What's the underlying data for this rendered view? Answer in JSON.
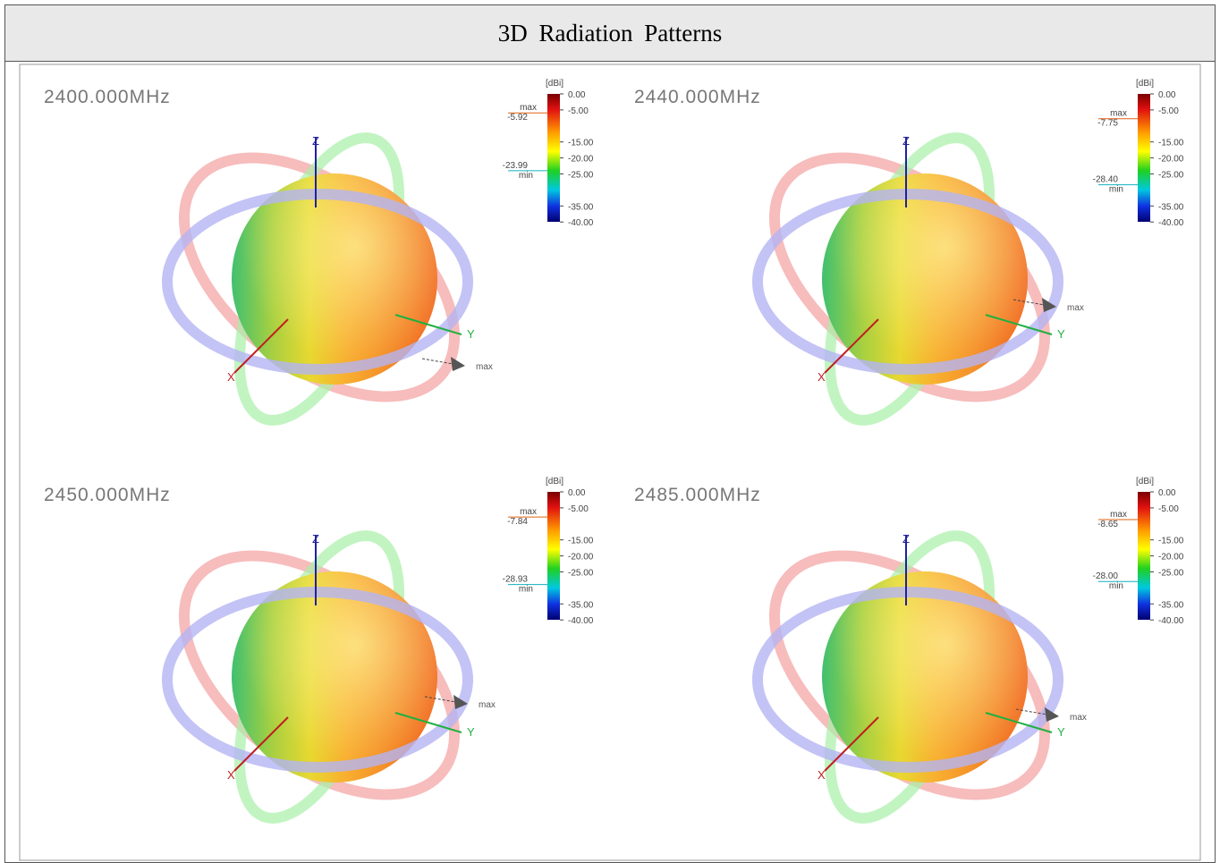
{
  "header": {
    "title": "3D Radiation Patterns"
  },
  "panels": [
    {
      "frequency": "2400.000MHz",
      "scale_unit": "[dBi]",
      "scale_ticks": [
        "0.00",
        "-5.00",
        "-15.00",
        "-20.00",
        "-25.00",
        "-35.00",
        "-40.00"
      ],
      "max_label": "max",
      "max_value": "-5.92",
      "min_label": "min",
      "min_value": "-23.99",
      "axes": {
        "z": "Z",
        "y": "Y",
        "x": "X"
      },
      "pointer": "max"
    },
    {
      "frequency": "2440.000MHz",
      "scale_unit": "[dBi]",
      "scale_ticks": [
        "0.00",
        "-5.00",
        "-15.00",
        "-20.00",
        "-25.00",
        "-35.00",
        "-40.00"
      ],
      "max_label": "max",
      "max_value": "-7.75",
      "min_label": "min",
      "min_value": "-28.40",
      "axes": {
        "z": "Z",
        "y": "Y",
        "x": "X"
      },
      "pointer": "max"
    },
    {
      "frequency": "2450.000MHz",
      "scale_unit": "[dBi]",
      "scale_ticks": [
        "0.00",
        "-5.00",
        "-15.00",
        "-20.00",
        "-25.00",
        "-35.00",
        "-40.00"
      ],
      "max_label": "max",
      "max_value": "-7.84",
      "min_label": "min",
      "min_value": "-28.93",
      "axes": {
        "z": "Z",
        "y": "Y",
        "x": "X"
      },
      "pointer": "max"
    },
    {
      "frequency": "2485.000MHz",
      "scale_unit": "[dBi]",
      "scale_ticks": [
        "0.00",
        "-5.00",
        "-15.00",
        "-20.00",
        "-25.00",
        "-35.00",
        "-40.00"
      ],
      "max_label": "max",
      "max_value": "-8.65",
      "min_label": "min",
      "min_value": "-28.00",
      "axes": {
        "z": "Z",
        "y": "Y",
        "x": "X"
      },
      "pointer": "max"
    }
  ]
}
